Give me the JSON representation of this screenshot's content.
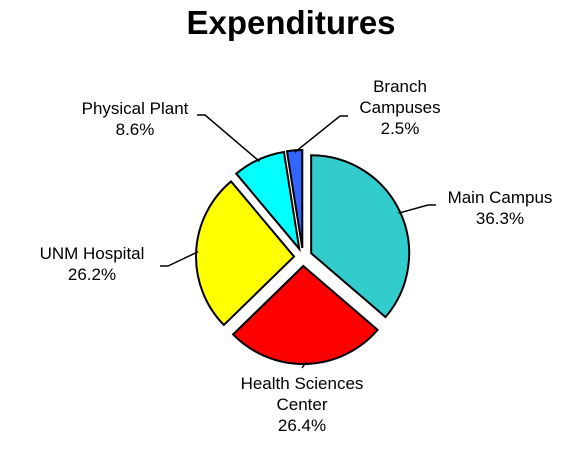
{
  "chart_data": {
    "type": "pie",
    "title": "Expenditures",
    "categories": [
      "Main Campus",
      "Health Sciences Center",
      "UNM Hospital",
      "Physical Plant",
      "Branch Campuses"
    ],
    "values": [
      36.3,
      26.4,
      26.2,
      8.6,
      2.5
    ],
    "value_labels": [
      "36.3%",
      "26.4%",
      "26.2%",
      "8.6%",
      "2.5%"
    ],
    "colors": [
      "#33cccc",
      "#ff0000",
      "#ffff00",
      "#00ffff",
      "#3366ff"
    ]
  }
}
